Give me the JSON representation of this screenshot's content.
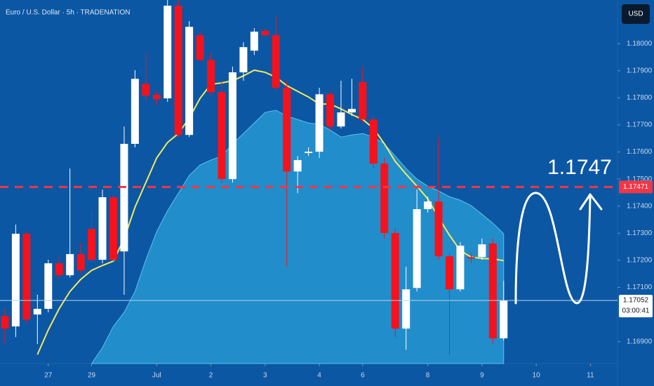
{
  "chart_data": {
    "type": "candlestick",
    "title": "Euro / U.S. Dollar · 5h · TRADENATION",
    "currency": "USD",
    "open": [
      1.16995,
      1.16956,
      1.17298,
      1.17,
      1.17021,
      1.17189,
      1.17145,
      1.17223,
      1.17316,
      1.17202,
      1.17433,
      1.17233,
      1.1763,
      1.17852,
      1.17811,
      1.17798,
      1.1814,
      1.17663,
      1.18031,
      1.1794,
      1.17821,
      1.175,
      1.17894,
      1.17974,
      1.18047,
      1.18031,
      1.17837,
      1.17528,
      1.17596,
      1.17601,
      1.17813,
      1.17694,
      1.17746,
      1.17858,
      1.1772,
      1.17557,
      1.17301,
      1.16948,
      1.17098,
      1.17389,
      1.17417,
      1.17215,
      1.17093,
      1.17212,
      1.17212,
      1.17262,
      1.16912
    ],
    "high": [
      1.17021,
      1.17332,
      1.17306,
      1.17073,
      1.17202,
      1.17215,
      1.17539,
      1.17267,
      1.17383,
      1.17461,
      1.1744,
      1.17694,
      1.17902,
      1.17966,
      1.17824,
      1.18161,
      1.18161,
      1.18083,
      1.18044,
      1.17966,
      1.17863,
      1.17915,
      1.18005,
      1.18057,
      1.18057,
      1.18104,
      1.17863,
      1.17585,
      1.17617,
      1.17837,
      1.17824,
      1.17863,
      1.1787,
      1.17915,
      1.17733,
      1.17578,
      1.17319,
      1.17176,
      1.17461,
      1.17435,
      1.17655,
      1.17228,
      1.17267,
      1.17228,
      1.1728,
      1.1728,
      1.17124
    ],
    "low": [
      1.16891,
      1.16917,
      1.16969,
      1.16891,
      1.17008,
      1.1713,
      1.17137,
      1.1715,
      1.17197,
      1.17189,
      1.17197,
      1.17073,
      1.17617,
      1.17785,
      1.17772,
      1.17785,
      1.17655,
      1.17655,
      1.17933,
      1.17811,
      1.17487,
      1.17487,
      1.17863,
      1.17958,
      1.18026,
      1.17824,
      1.17176,
      1.17448,
      1.17585,
      1.17578,
      1.17681,
      1.17687,
      1.17733,
      1.17707,
      1.17539,
      1.1728,
      1.16917,
      1.1687,
      1.17085,
      1.17376,
      1.17202,
      1.16852,
      1.17085,
      1.17189,
      1.17202,
      1.16891,
      1.16904
    ],
    "close": [
      1.16948,
      1.17298,
      1.16982,
      1.17021,
      1.17189,
      1.17145,
      1.17223,
      1.17163,
      1.17202,
      1.17433,
      1.17202,
      1.1763,
      1.1787,
      1.17808,
      1.17795,
      1.1814,
      1.17663,
      1.18062,
      1.1794,
      1.17821,
      1.175,
      1.17894,
      1.17987,
      1.18044,
      1.18031,
      1.17837,
      1.17528,
      1.1757,
      1.17601,
      1.17813,
      1.17694,
      1.17746,
      1.17759,
      1.1772,
      1.17557,
      1.17301,
      1.16948,
      1.17093,
      1.17389,
      1.17417,
      1.17215,
      1.17093,
      1.17254,
      1.17207,
      1.17259,
      1.16912,
      1.17052
    ],
    "up_color": "#ffffff",
    "down_color": "#f5121c",
    "series": [
      {
        "type": "area",
        "color": "#2a9fd8",
        "values": [
          null,
          null,
          null,
          null,
          null,
          null,
          null,
          null,
          1.16819,
          1.16878,
          1.16956,
          1.17008,
          1.17085,
          1.17202,
          1.17306,
          1.17383,
          1.17448,
          1.17513,
          1.17552,
          1.1757,
          1.17585,
          1.1763,
          1.17668,
          1.17707,
          1.17746,
          1.17754,
          1.17733,
          1.1772,
          1.17707,
          1.17702,
          1.17681,
          1.17655,
          1.17663,
          1.17668,
          1.17655,
          1.1763,
          1.17585,
          1.17539,
          1.175,
          1.17474,
          1.17456,
          1.17435,
          1.17422,
          1.17402,
          1.1737,
          1.17337,
          1.17298
        ]
      },
      {
        "type": "line",
        "color": "#f3e95c",
        "values": [
          null,
          null,
          null,
          1.16852,
          1.16943,
          1.17021,
          1.17085,
          1.1713,
          1.17163,
          1.17181,
          1.17197,
          1.1728,
          1.17396,
          1.17487,
          1.17578,
          1.17635,
          1.17668,
          1.17725,
          1.17798,
          1.1785,
          1.17855,
          1.17863,
          1.17881,
          1.17902,
          1.17894,
          1.17876,
          1.17845,
          1.17824,
          1.17803,
          1.17777,
          1.17777,
          1.17759,
          1.17738,
          1.1772,
          1.17687,
          1.1763,
          1.17565,
          1.17518,
          1.17474,
          1.17427,
          1.17358,
          1.17293,
          1.17236,
          1.17212,
          1.17207,
          1.17205,
          1.17199
        ]
      }
    ],
    "ylim": [
      1.16819,
      1.18161
    ],
    "yticks": [
      {
        "value": 1.169,
        "label": "1.16900"
      },
      {
        "value": 1.171,
        "label": "1.17100"
      },
      {
        "value": 1.172,
        "label": "1.17200"
      },
      {
        "value": 1.173,
        "label": "1.17300"
      },
      {
        "value": 1.174,
        "label": "1.17400"
      },
      {
        "value": 1.175,
        "label": "1.17500"
      },
      {
        "value": 1.176,
        "label": "1.17600"
      },
      {
        "value": 1.177,
        "label": "1.17700"
      },
      {
        "value": 1.178,
        "label": "1.17800"
      },
      {
        "value": 1.179,
        "label": "1.17900"
      },
      {
        "value": 1.18,
        "label": "1.18000"
      }
    ],
    "xlim": [
      -0.45,
      56.5
    ],
    "xticks": [
      {
        "value": 4,
        "label": "27"
      },
      {
        "value": 8,
        "label": "29"
      },
      {
        "value": 14,
        "label": "Jul"
      },
      {
        "value": 19,
        "label": "2"
      },
      {
        "value": 24,
        "label": "3"
      },
      {
        "value": 29,
        "label": "4"
      },
      {
        "value": 33,
        "label": "6"
      },
      {
        "value": 39,
        "label": "8"
      },
      {
        "value": 44,
        "label": "9"
      },
      {
        "value": 49,
        "label": "10"
      },
      {
        "value": 54,
        "label": "11"
      }
    ],
    "level": 1.17471,
    "level_color": "#f23645",
    "annotation": "1.1747",
    "countdown": "03:00:41"
  }
}
